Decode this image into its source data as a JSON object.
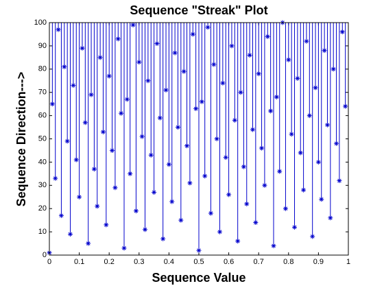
{
  "chart_data": {
    "type": "stem",
    "title": "Sequence \"Streak\" Plot",
    "xlabel": "Sequence Value",
    "ylabel": "Sequence Direction--->",
    "x": [
      0,
      0.01,
      0.02,
      0.03,
      0.04,
      0.05,
      0.06,
      0.07,
      0.08,
      0.09,
      0.1,
      0.11,
      0.12,
      0.13,
      0.14,
      0.15,
      0.16,
      0.17,
      0.18,
      0.19,
      0.2,
      0.21,
      0.22,
      0.23,
      0.24,
      0.25,
      0.26,
      0.27,
      0.28,
      0.29,
      0.3,
      0.31,
      0.32,
      0.33,
      0.34,
      0.35,
      0.36,
      0.37,
      0.38,
      0.39,
      0.4,
      0.41,
      0.42,
      0.43,
      0.44,
      0.45,
      0.46,
      0.47,
      0.48,
      0.49,
      0.5,
      0.51,
      0.52,
      0.53,
      0.54,
      0.55,
      0.56,
      0.57,
      0.58,
      0.59,
      0.6,
      0.61,
      0.62,
      0.63,
      0.64,
      0.65,
      0.66,
      0.67,
      0.68,
      0.69,
      0.7,
      0.71,
      0.72,
      0.73,
      0.74,
      0.75,
      0.76,
      0.77,
      0.78,
      0.79,
      0.8,
      0.81,
      0.82,
      0.83,
      0.84,
      0.85,
      0.86,
      0.87,
      0.88,
      0.89,
      0.9,
      0.91,
      0.92,
      0.93,
      0.94,
      0.95,
      0.96,
      0.97,
      0.98,
      0.99
    ],
    "values": [
      1,
      65,
      33,
      97,
      17,
      81,
      49,
      9,
      73,
      41,
      25,
      89,
      57,
      5,
      69,
      37,
      21,
      85,
      53,
      13,
      77,
      45,
      29,
      93,
      61,
      3,
      67,
      35,
      99,
      19,
      83,
      51,
      11,
      75,
      43,
      27,
      91,
      59,
      7,
      71,
      39,
      23,
      87,
      55,
      15,
      79,
      47,
      31,
      95,
      63,
      2,
      66,
      34,
      98,
      18,
      82,
      50,
      10,
      74,
      42,
      26,
      90,
      58,
      6,
      70,
      38,
      22,
      86,
      54,
      14,
      78,
      46,
      30,
      94,
      62,
      4,
      68,
      36,
      100,
      20,
      84,
      52,
      12,
      76,
      44,
      28,
      92,
      60,
      8,
      72,
      40,
      24,
      88,
      56,
      16,
      80,
      48,
      32,
      96,
      64
    ],
    "color": "#0000cc",
    "xlim": [
      0,
      1
    ],
    "xticks": [
      0,
      {
        "value": 0.1,
        "label": "0.1"
      },
      {
        "value": 0.2,
        "label": "0.2"
      },
      {
        "value": 0.3,
        "label": "0.3"
      },
      {
        "value": 0.4,
        "label": "0.4"
      },
      {
        "value": 0.5,
        "label": "0.5"
      },
      {
        "value": 0.6,
        "label": "0.6"
      },
      {
        "value": 0.7,
        "label": "0.7"
      },
      {
        "value": 0.8,
        "label": "0.8"
      },
      {
        "value": 0.9,
        "label": "0.9"
      },
      1
    ],
    "ylim": [
      0,
      100
    ],
    "yticks": [
      0,
      10,
      20,
      30,
      40,
      50,
      60,
      70,
      80,
      90,
      100
    ]
  }
}
